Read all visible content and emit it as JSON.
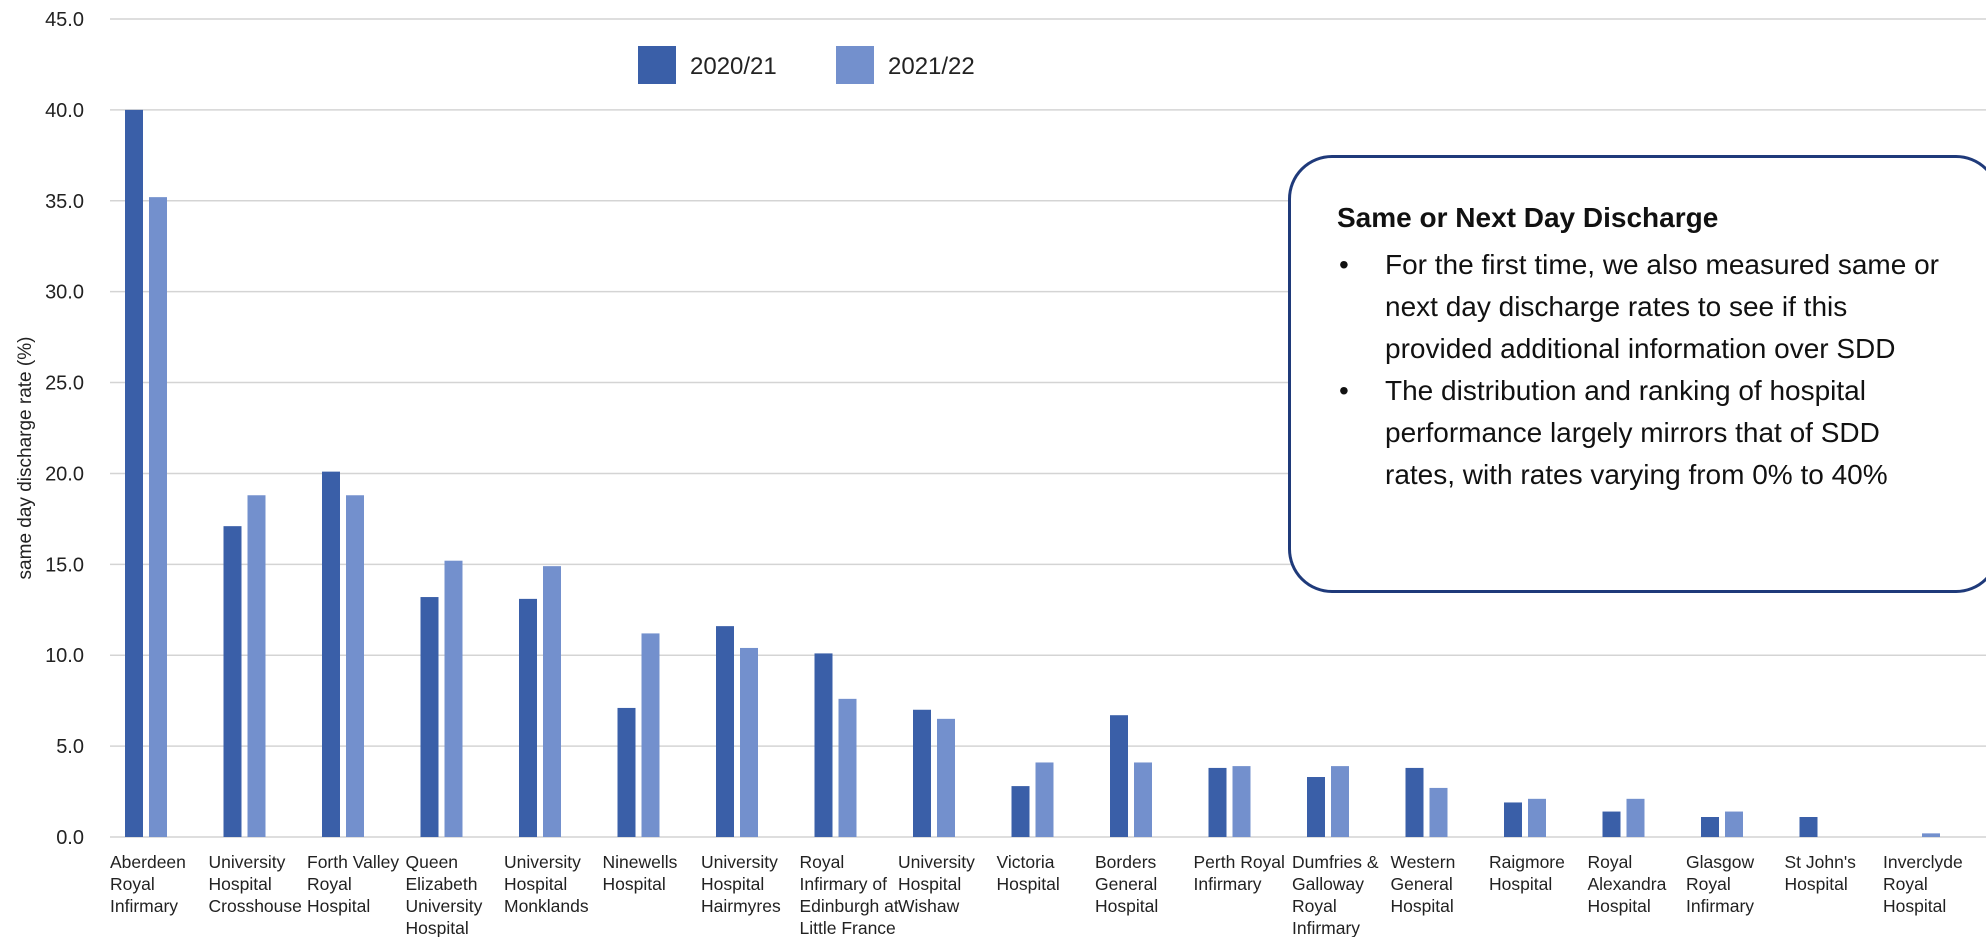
{
  "chart_data": {
    "type": "bar",
    "ylabel": "same day discharge rate (%)",
    "ylim": [
      0,
      45
    ],
    "yticks": [
      "0.0",
      "5.0",
      "10.0",
      "15.0",
      "20.0",
      "25.0",
      "30.0",
      "35.0",
      "40.0",
      "45.0"
    ],
    "grid": true,
    "legend_position": "top-center",
    "categories": [
      [
        "Aberdeen",
        "Royal",
        "Infirmary"
      ],
      [
        "University",
        "Hospital",
        "Crosshouse"
      ],
      [
        "Forth Valley",
        "Royal",
        "Hospital"
      ],
      [
        "Queen",
        "Elizabeth",
        "University",
        "Hospital"
      ],
      [
        "University",
        "Hospital",
        "Monklands"
      ],
      [
        "Ninewells",
        "Hospital"
      ],
      [
        "University",
        "Hospital",
        "Hairmyres"
      ],
      [
        "Royal",
        "Infirmary of",
        "Edinburgh at",
        "Little France"
      ],
      [
        "University",
        "Hospital",
        "Wishaw"
      ],
      [
        "Victoria",
        "Hospital"
      ],
      [
        "Borders",
        "General",
        "Hospital"
      ],
      [
        "Perth Royal",
        "Infirmary"
      ],
      [
        "Dumfries &",
        "Galloway",
        "Royal",
        "Infirmary"
      ],
      [
        "Western",
        "General",
        "Hospital"
      ],
      [
        "Raigmore",
        "Hospital"
      ],
      [
        "Royal",
        "Alexandra",
        "Hospital"
      ],
      [
        "Glasgow",
        "Royal",
        "Infirmary"
      ],
      [
        "St John's",
        "Hospital"
      ],
      [
        "Inverclyde",
        "Royal",
        "Hospital"
      ]
    ],
    "series": [
      {
        "name": "2020/21",
        "color": "#3a5fa8",
        "values": [
          40.0,
          17.1,
          20.1,
          13.2,
          13.1,
          7.1,
          11.6,
          10.1,
          7.0,
          2.8,
          6.7,
          3.8,
          3.3,
          3.8,
          1.9,
          1.4,
          1.1,
          1.1,
          0.0
        ]
      },
      {
        "name": "2021/22",
        "color": "#7390cd",
        "values": [
          35.2,
          18.8,
          18.8,
          15.2,
          14.9,
          11.2,
          10.4,
          7.6,
          6.5,
          4.1,
          4.1,
          3.9,
          3.9,
          2.7,
          2.1,
          2.1,
          1.4,
          0.0,
          0.2
        ]
      }
    ]
  },
  "callout": {
    "title": "Same or Next Day Discharge",
    "bullets": [
      "For the first time, we also measured same or next day discharge rates to see if this provided additional information over SDD",
      "The distribution and ranking of hospital performance largely mirrors that of SDD rates, with rates varying from 0% to 40%"
    ]
  }
}
